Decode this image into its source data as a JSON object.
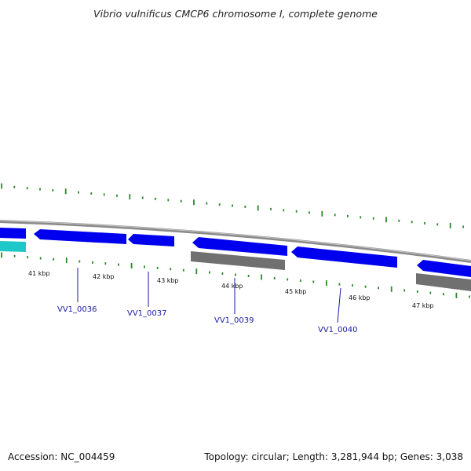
{
  "title": "Vibrio vulnificus CMCP6 chromosome I, complete genome",
  "footer": {
    "accession_label": "Accession:",
    "accession": "NC_004459",
    "topology_text": "Topology: circular; Length: 3,281,944 bp; Genes: 3,038"
  },
  "colors": {
    "forward_gene": "#0000ee",
    "reverse_gene": "#707070",
    "other_feature": "#1ec8c8",
    "tick": "#2a8a2a",
    "backbone": "#888888",
    "label": "#1a1aa8"
  },
  "scale": {
    "kbp_labels": [
      "41 kbp",
      "42 kbp",
      "43 kbp",
      "44 kbp",
      "45 kbp",
      "46 kbp",
      "47 kbp"
    ]
  },
  "gene_labels": [
    "VV1_0036",
    "VV1_0037",
    "VV1_0039",
    "VV1_0040"
  ]
}
